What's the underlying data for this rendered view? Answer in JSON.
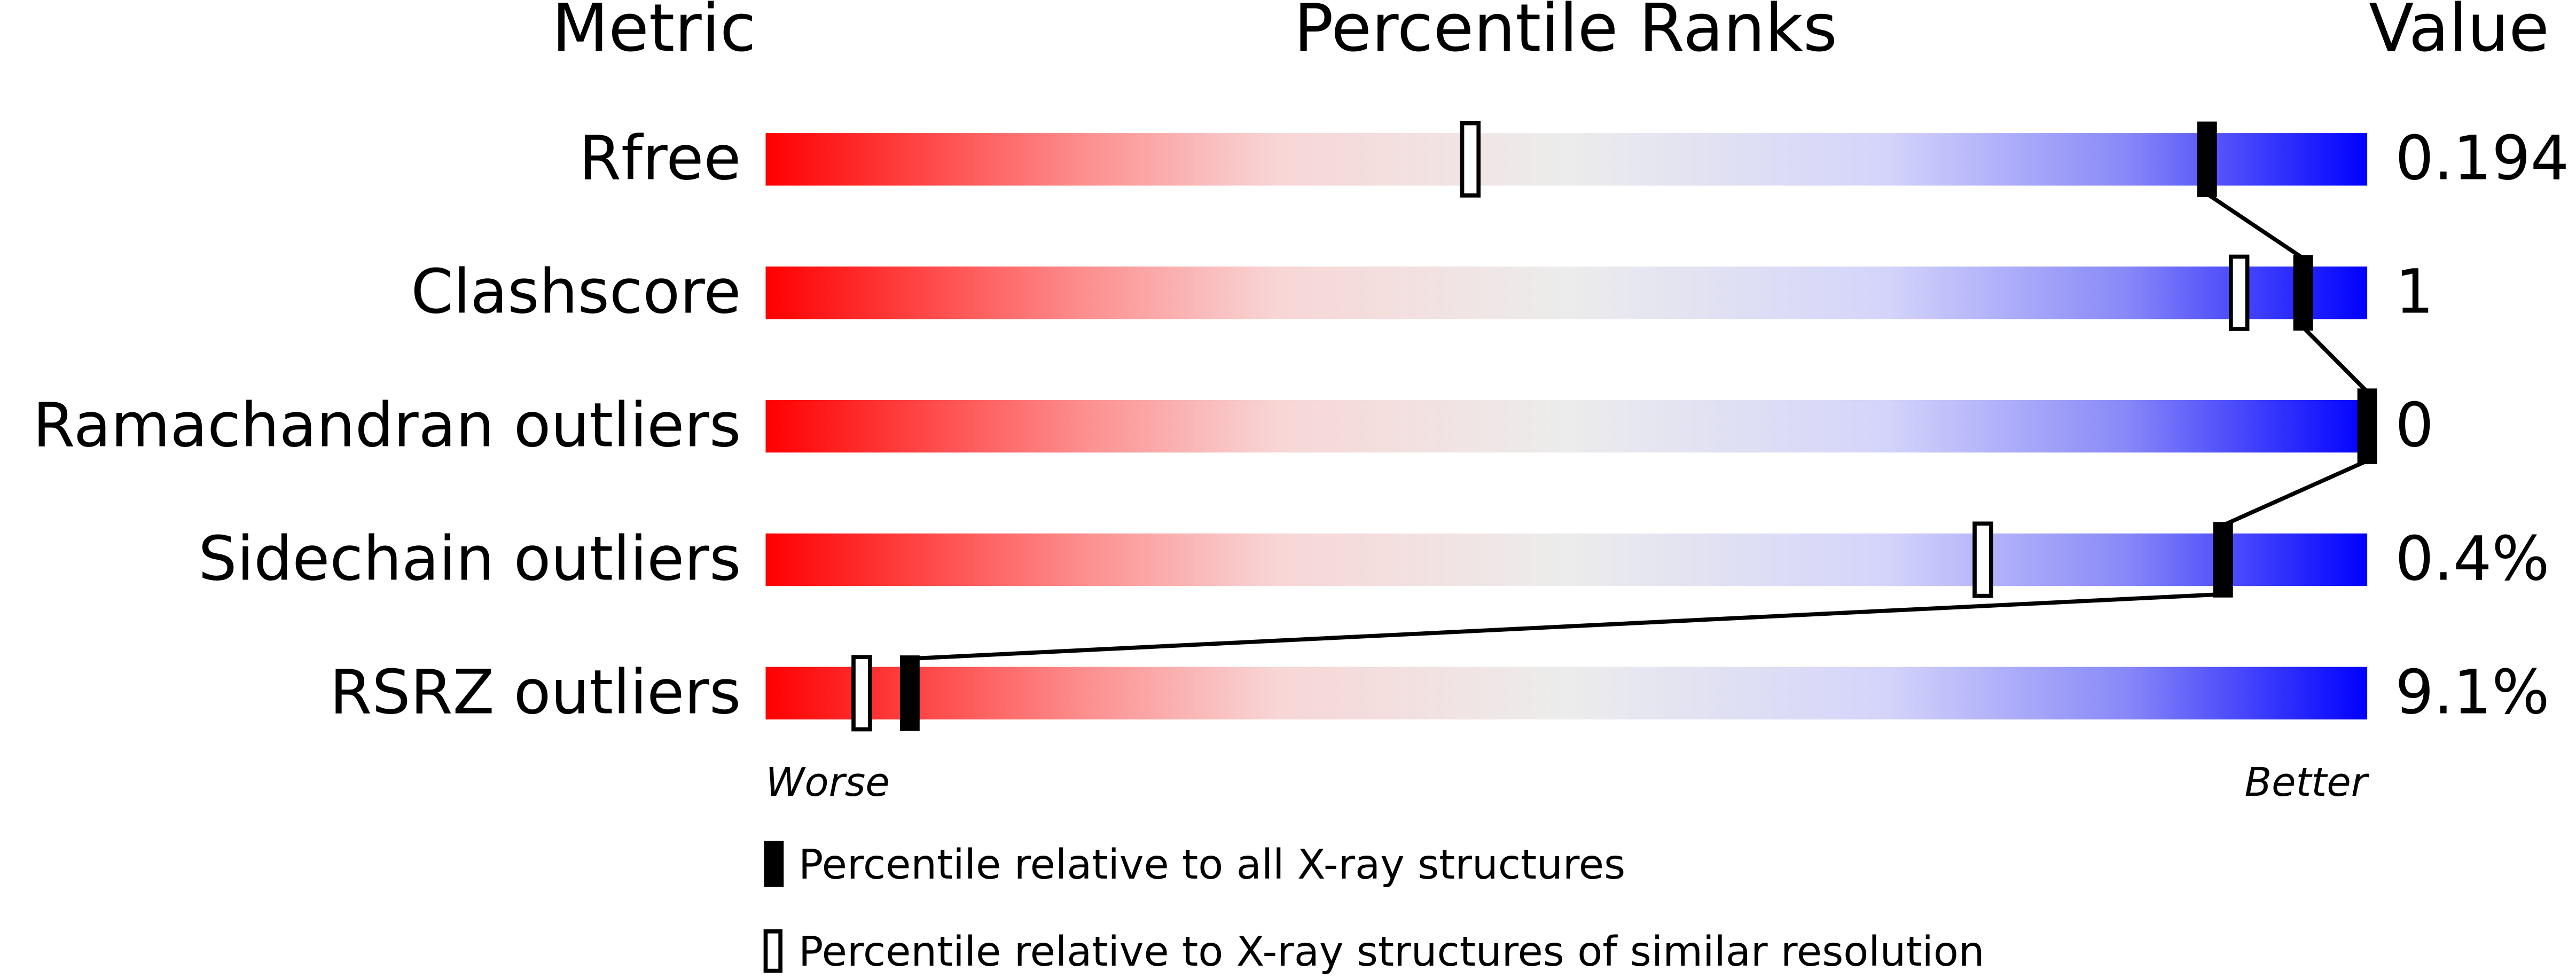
{
  "chart_data": {
    "type": "percentile_slider",
    "headers": [
      "Metric",
      "Percentile Ranks",
      "Value"
    ],
    "categories": [
      "Rfree",
      "Clashscore",
      "Ramachandran outliers",
      "Sidechain outliers",
      "RSRZ outliers"
    ],
    "metric_values": [
      "0.194",
      "1",
      "0",
      "0.4%",
      "9.1%"
    ],
    "xlim": [
      0,
      100
    ],
    "low_label": "Worse",
    "high_label": "Better",
    "series": [
      {
        "name": "Percentile relative to all X-ray structures",
        "color": "#000000",
        "filled": true,
        "values": [
          90,
          96,
          100,
          91,
          9
        ]
      },
      {
        "name": "Percentile relative to X-ray structures of similar resolution",
        "color": "#000000",
        "filled": false,
        "values": [
          44,
          92,
          null,
          76,
          6
        ]
      }
    ]
  }
}
